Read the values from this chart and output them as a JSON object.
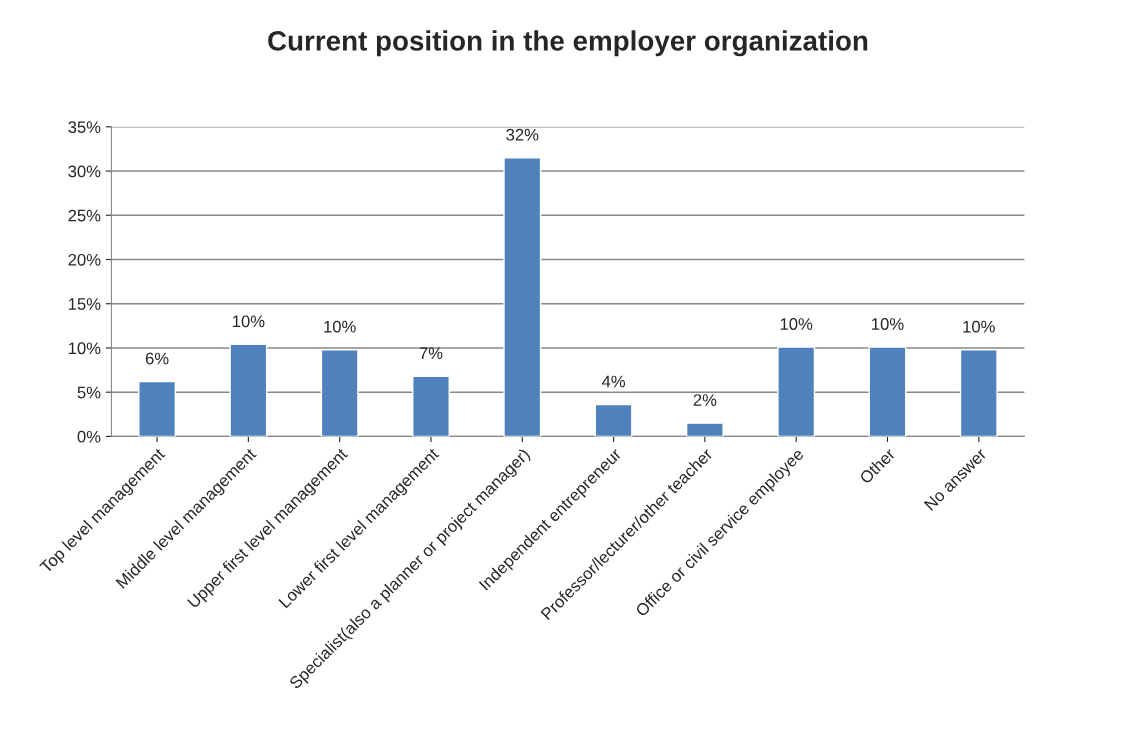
{
  "chart_data": {
    "type": "bar",
    "title": "Current position in the employer organization",
    "categories": [
      "Top level management",
      "Middle level management",
      "Upper first level management",
      "Lower first level management",
      "Specialist(also a planner or project manager)",
      "Independent entrepreneur",
      "Professor/lecturer/other teacher",
      "Office or civil service employee",
      "Other",
      "No answer"
    ],
    "values": [
      6.2,
      10.4,
      9.8,
      6.8,
      31.5,
      3.6,
      1.5,
      10.1,
      10.1,
      9.8
    ],
    "value_labels": [
      "6%",
      "10%",
      "10%",
      "7%",
      "32%",
      "4%",
      "2%",
      "10%",
      "10%",
      "10%"
    ],
    "color": "#4f81bd",
    "ylim": [
      0,
      35
    ],
    "yticks": [
      {
        "value": 0,
        "label": "0%"
      },
      {
        "value": 5,
        "label": "5%"
      },
      {
        "value": 10,
        "label": "10%"
      },
      {
        "value": 15,
        "label": "15%"
      },
      {
        "value": 20,
        "label": "20%"
      },
      {
        "value": 25,
        "label": "25%"
      },
      {
        "value": 30,
        "label": "30%"
      },
      {
        "value": 35,
        "label": "35%"
      }
    ],
    "grid": "y"
  }
}
